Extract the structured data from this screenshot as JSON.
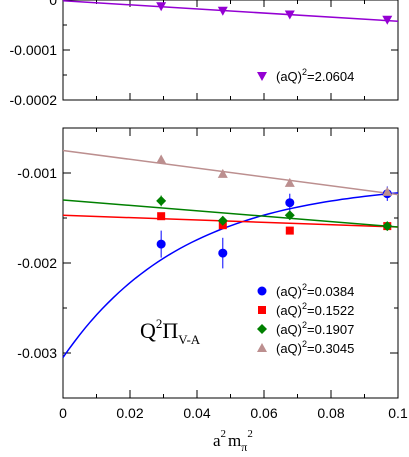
{
  "chart_data": [
    {
      "type": "scatter",
      "panel": "top",
      "xlim": [
        0,
        0.1
      ],
      "ylim": [
        -0.0002,
        0.0
      ],
      "ytick_labels": [
        "0",
        "-0.0001",
        "-0.0002"
      ],
      "legend_placement": "bottom-right",
      "series": [
        {
          "name": "(aQ)²=2.0604",
          "legend_prefix": "(aQ)",
          "legend_exp": "2",
          "legend_value": "=2.0604",
          "color": "#9400d3",
          "marker": "triangle-down",
          "x": [
            0.0293,
            0.0477,
            0.0677,
            0.0968
          ],
          "y": [
            -1.25e-05,
            -2.15e-05,
            -2.9e-05,
            -3.95e-05
          ],
          "err": [
            1e-06,
            1e-06,
            1e-06,
            2e-06
          ],
          "fit": {
            "x0": 0.0,
            "y0": -1.5e-06,
            "x1": 0.1,
            "y1": -4.25e-05
          }
        }
      ]
    },
    {
      "type": "scatter",
      "panel": "bottom",
      "xlim": [
        0,
        0.1
      ],
      "ylim": [
        -0.0035,
        -0.0005
      ],
      "xticks": [
        0,
        0.02,
        0.04,
        0.06,
        0.08,
        0.1
      ],
      "xtick_labels": [
        "0",
        "0.02",
        "0.04",
        "0.06",
        "0.08",
        "0.1"
      ],
      "yticks": [
        -0.001,
        -0.002,
        -0.003
      ],
      "ytick_labels": [
        "-0.001",
        "-0.002",
        "-0.003"
      ],
      "legend_placement": "bottom-right",
      "series": [
        {
          "name": "(aQ)²=0.0384",
          "legend_prefix": "(aQ)",
          "legend_exp": "2",
          "legend_value": "=0.0384",
          "color": "#0000ff",
          "marker": "circle",
          "x": [
            0.0293,
            0.0477,
            0.0677,
            0.0968
          ],
          "y": [
            -0.00179,
            -0.00189,
            -0.00133,
            -0.00123
          ],
          "err": [
            0.00015,
            0.00017,
            0.0001,
            8e-05
          ],
          "fit_curve": "exp"
        },
        {
          "name": "(aQ)²=0.1522",
          "legend_prefix": "(aQ)",
          "legend_exp": "2",
          "legend_value": "=0.1522",
          "color": "#ff0000",
          "marker": "square",
          "x": [
            0.0293,
            0.0477,
            0.0677,
            0.0968
          ],
          "y": [
            -0.00148,
            -0.00158,
            -0.00164,
            -0.00159
          ],
          "err": [
            3e-05,
            3e-05,
            3e-05,
            3e-05
          ],
          "fit": {
            "x0": 0.0,
            "y0": -0.00147,
            "x1": 0.1,
            "y1": -0.0016
          }
        },
        {
          "name": "(aQ)²=0.1907",
          "legend_prefix": "(aQ)",
          "legend_exp": "2",
          "legend_value": "=0.1907",
          "color": "#008000",
          "marker": "diamond",
          "x": [
            0.0293,
            0.0477,
            0.0677,
            0.0968
          ],
          "y": [
            -0.00131,
            -0.00153,
            -0.00147,
            -0.00159
          ],
          "err": [
            6e-05,
            5e-05,
            4e-05,
            3e-05
          ],
          "fit": {
            "x0": 0.0,
            "y0": -0.0013,
            "x1": 0.1,
            "y1": -0.0016
          }
        },
        {
          "name": "(aQ)²=0.3045",
          "legend_prefix": "(aQ)",
          "legend_exp": "2",
          "legend_value": "=0.3045",
          "color": "#bc8f8f",
          "marker": "triangle-up",
          "x": [
            0.0293,
            0.0477,
            0.0677,
            0.0968
          ],
          "y": [
            -0.00085,
            -0.00101,
            -0.00111,
            -0.00121
          ],
          "err": [
            2e-05,
            2e-05,
            2e-05,
            2e-05
          ],
          "fit": {
            "x0": 0.0,
            "y0": -0.00075,
            "x1": 0.1,
            "y1": -0.00124
          }
        }
      ],
      "annotation": {
        "base": "Q",
        "sup": "2",
        "greek": "Π",
        "sub": "V-A"
      },
      "xlabel": {
        "a": "a",
        "sup1": "2",
        "m": "m",
        "sub": "π",
        "sup2": "2"
      }
    }
  ]
}
